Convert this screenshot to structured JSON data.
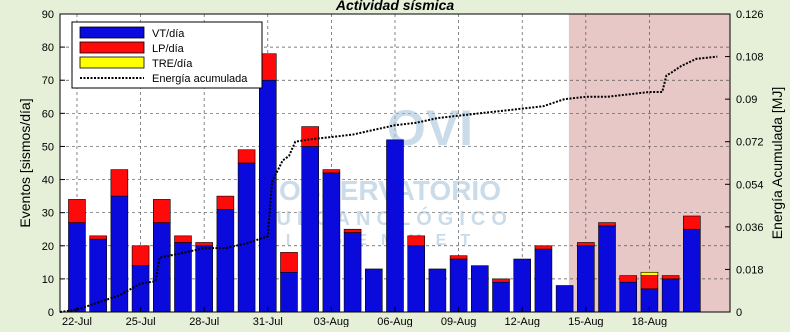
{
  "chart_data": {
    "type": "bar",
    "title": "Actividad sísmica",
    "ylabel": "Eventos [sismos/día]",
    "y2label": "Energía Acumulada [MJ]",
    "ylim": [
      0,
      90
    ],
    "y2lim": [
      0,
      0.126
    ],
    "yticks": [
      0,
      10,
      20,
      30,
      40,
      50,
      60,
      70,
      80,
      90
    ],
    "y2ticks": [
      "0",
      "0.018",
      "0.036",
      "0.054",
      "0.072",
      "0.09",
      "0.108",
      "0.126"
    ],
    "x_tick_labels": [
      "22-Jul",
      "25-Jul",
      "28-Jul",
      "31-Jul",
      "03-Aug",
      "06-Aug",
      "09-Aug",
      "12-Aug",
      "15-Aug",
      "18-Aug"
    ],
    "x_tick_positions": [
      1,
      4,
      7,
      10,
      13,
      16,
      19,
      22,
      25,
      28
    ],
    "x_range": [
      0.2,
      31.8
    ],
    "highlight_range": [
      24.2,
      31.8
    ],
    "stacked": true,
    "legend_position": "top-left",
    "grid": true,
    "series": [
      {
        "name": "VT/día",
        "color": "#0a0adc",
        "values": [
          27,
          22,
          35,
          14,
          27,
          21,
          20,
          31,
          45,
          70,
          12,
          50,
          42,
          24,
          13,
          52,
          20,
          13,
          16,
          14,
          9,
          16,
          19,
          8,
          20,
          26,
          9,
          7,
          10,
          25
        ]
      },
      {
        "name": "LP/día",
        "color": "#ff0a0a",
        "values": [
          7,
          1,
          8,
          6,
          7,
          2,
          1,
          4,
          4,
          8,
          6,
          6,
          1,
          1,
          0,
          0,
          3,
          0,
          1,
          0,
          1,
          0,
          1,
          0,
          1,
          1,
          2,
          4,
          1,
          4
        ]
      },
      {
        "name": "TRE/día",
        "color": "#ffff00",
        "values": [
          0,
          0,
          0,
          0,
          0,
          0,
          0,
          0,
          0,
          0,
          0,
          0,
          0,
          0,
          0,
          0,
          0,
          0,
          0,
          0,
          0,
          0,
          0,
          0,
          0,
          0,
          0,
          1,
          0,
          0
        ]
      }
    ],
    "line": {
      "name": "Energía acumulada",
      "axis": "right",
      "points": [
        [
          0.2,
          0.0
        ],
        [
          1,
          0.001
        ],
        [
          2,
          0.004
        ],
        [
          3,
          0.007
        ],
        [
          4,
          0.012
        ],
        [
          4.7,
          0.013
        ],
        [
          4.9,
          0.023
        ],
        [
          6,
          0.025
        ],
        [
          7,
          0.027
        ],
        [
          8,
          0.027
        ],
        [
          9,
          0.029
        ],
        [
          10,
          0.032
        ],
        [
          10.2,
          0.055
        ],
        [
          10.7,
          0.064
        ],
        [
          11,
          0.066
        ],
        [
          11.3,
          0.072
        ],
        [
          12,
          0.073
        ],
        [
          13,
          0.074
        ],
        [
          14,
          0.075
        ],
        [
          15,
          0.077
        ],
        [
          16,
          0.079
        ],
        [
          17,
          0.08
        ],
        [
          18,
          0.082
        ],
        [
          19,
          0.083
        ],
        [
          20,
          0.084
        ],
        [
          21,
          0.085
        ],
        [
          22,
          0.086
        ],
        [
          23,
          0.087
        ],
        [
          24,
          0.09
        ],
        [
          25,
          0.091
        ],
        [
          26,
          0.091
        ],
        [
          27,
          0.092
        ],
        [
          28,
          0.093
        ],
        [
          28.6,
          0.093
        ],
        [
          28.8,
          0.1
        ],
        [
          29,
          0.101
        ],
        [
          29.5,
          0.104
        ],
        [
          30.2,
          0.107
        ],
        [
          31.2,
          0.108
        ]
      ]
    }
  },
  "watermark": {
    "logo_text": "OVI",
    "line1": "OBSERVATORIO",
    "line2": "VULCANOLÓGICO",
    "line3": "INGEMMET"
  },
  "colors": {
    "highlight": "#e8c8c6",
    "plot_bg": "#ffffff",
    "page_bg": "#e6efd8",
    "bar_edge": "#000000",
    "line": "#000000"
  }
}
